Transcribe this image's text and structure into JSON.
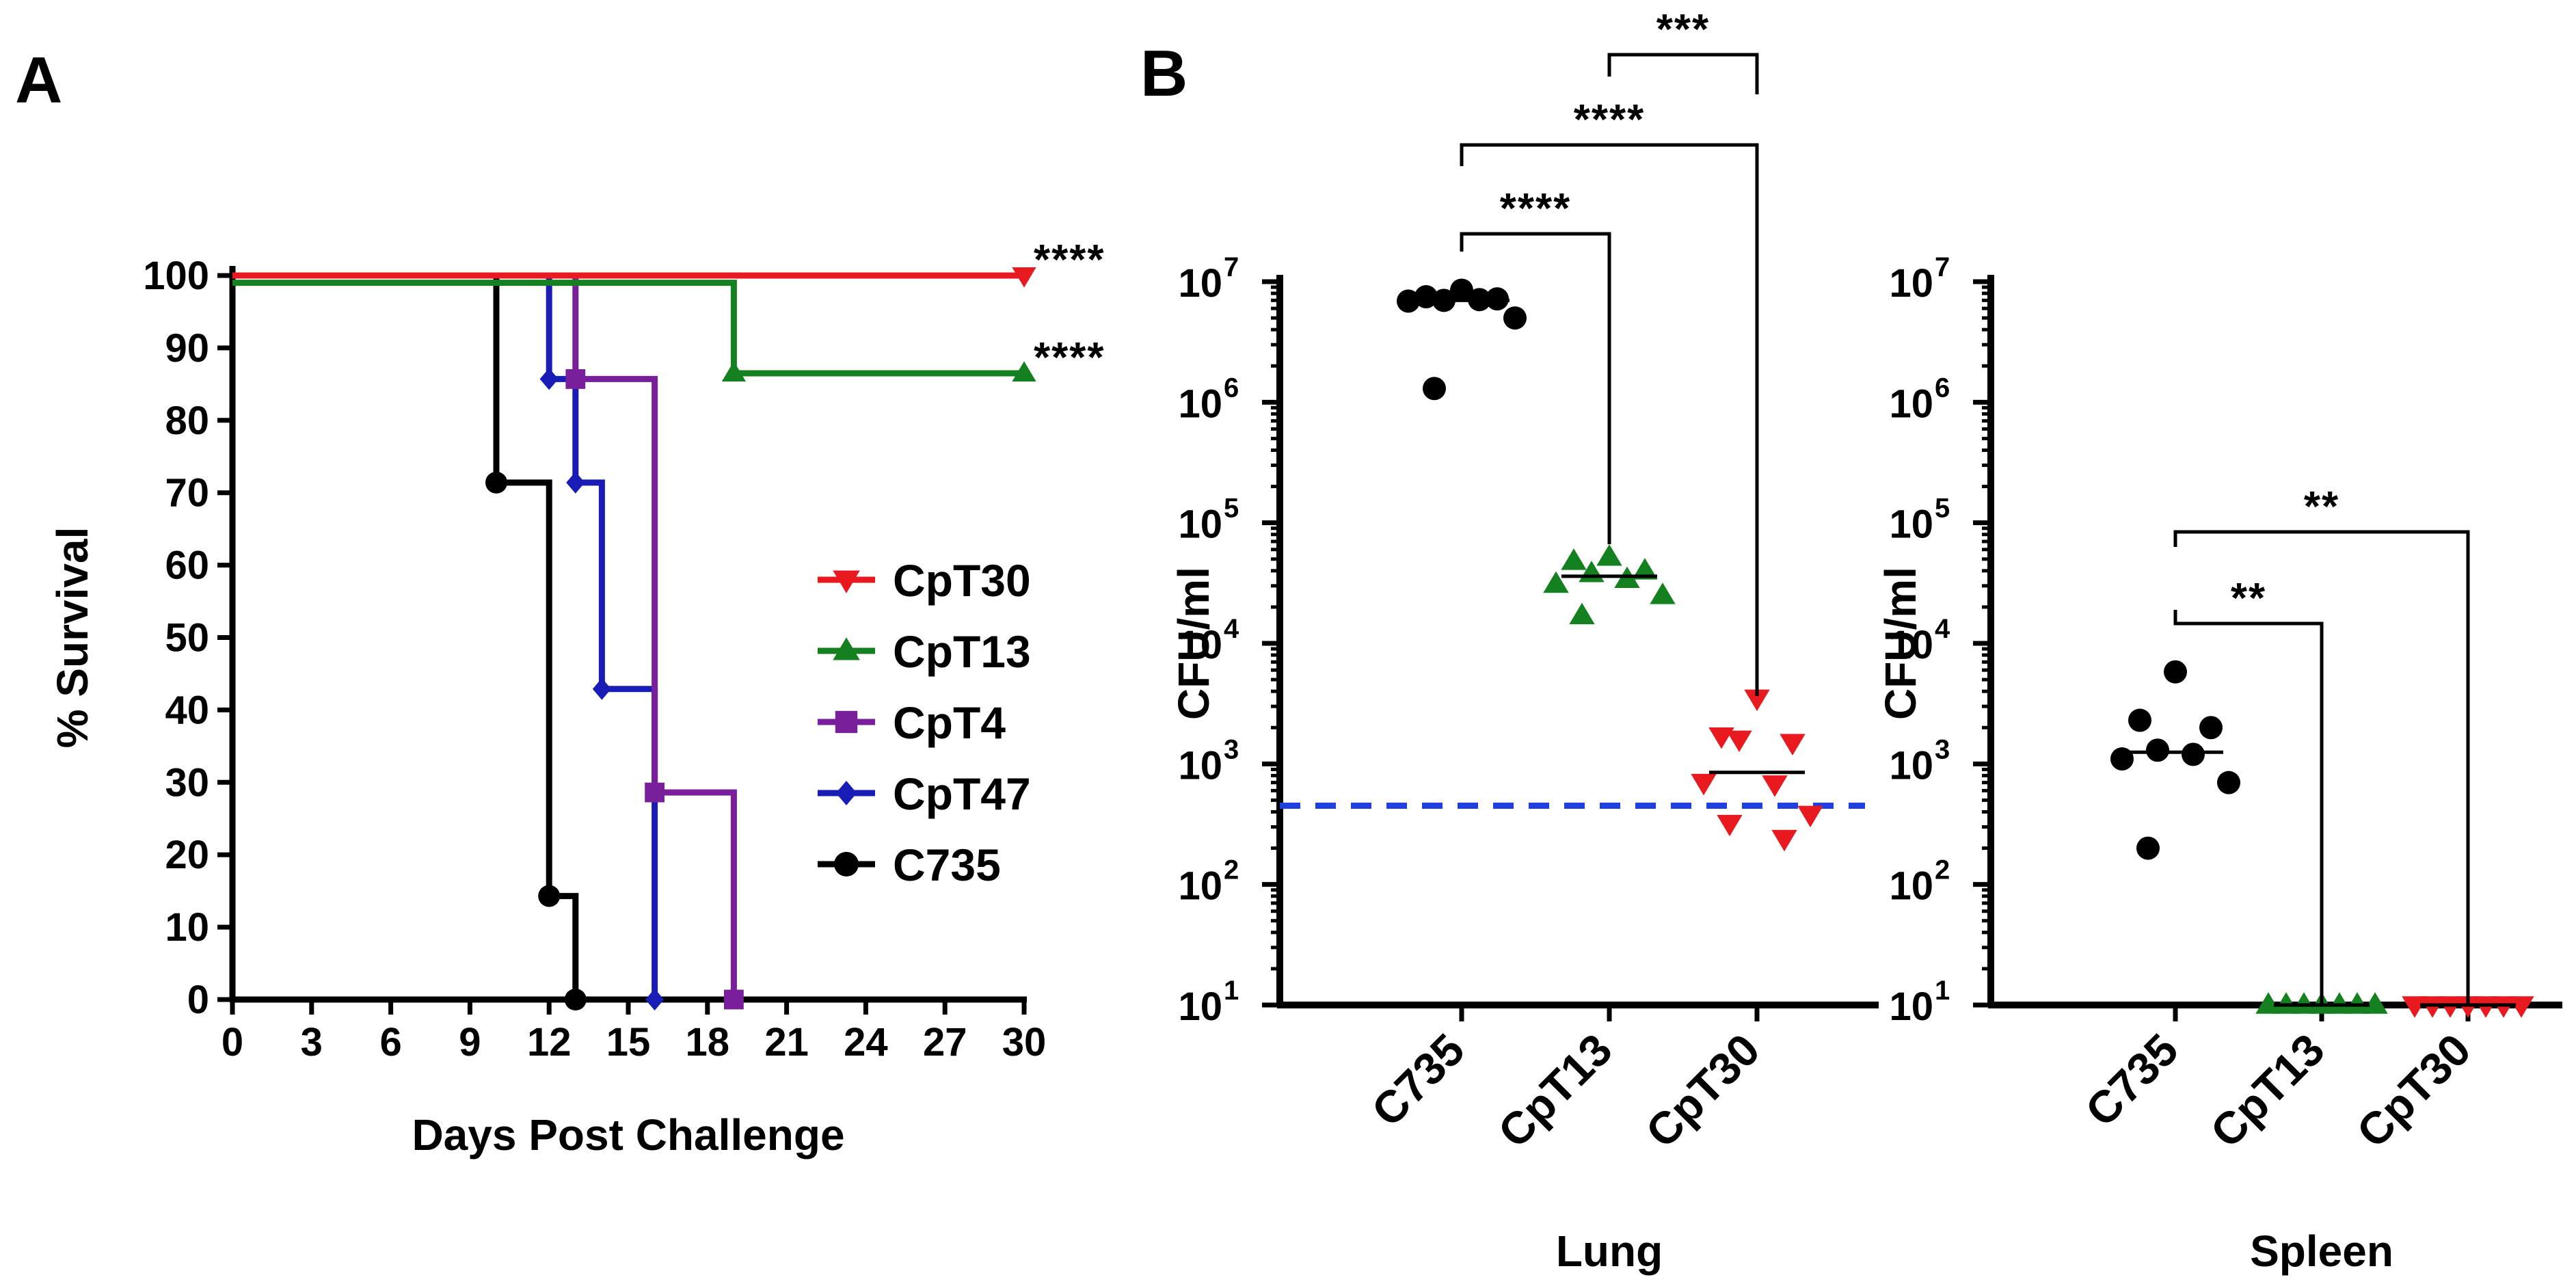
{
  "panel_a_label": "A",
  "panel_b_label": "B",
  "chart_data": [
    {
      "type": "line",
      "subtype": "kaplan-meier",
      "panel": "A",
      "xlabel": "Days Post Challenge",
      "ylabel": "% Survival",
      "xlim": [
        0,
        30
      ],
      "ylim": [
        0,
        100
      ],
      "xticks": [
        0,
        3,
        6,
        9,
        12,
        15,
        18,
        21,
        24,
        27,
        30
      ],
      "yticks": [
        0,
        10,
        20,
        30,
        40,
        50,
        60,
        70,
        80,
        90,
        100
      ],
      "legend_position": "center-right",
      "series": [
        {
          "name": "CpT30",
          "color": "#e8191f",
          "marker": "triangle-down",
          "steps": [
            [
              0,
              100
            ],
            [
              30,
              100
            ]
          ],
          "markers": [
            [
              30,
              100
            ]
          ],
          "significance": "****"
        },
        {
          "name": "CpT13",
          "color": "#14801f",
          "marker": "triangle-up",
          "steps": [
            [
              0,
              99
            ],
            [
              19,
              99
            ],
            [
              19,
              86.5
            ],
            [
              30,
              86.5
            ]
          ],
          "markers": [
            [
              19,
              86.5
            ],
            [
              30,
              86.5
            ]
          ],
          "significance": "****"
        },
        {
          "name": "CpT4",
          "color": "#7a1f9c",
          "marker": "square",
          "steps": [
            [
              0,
              100
            ],
            [
              13,
              100
            ],
            [
              13,
              85.7
            ],
            [
              16,
              85.7
            ],
            [
              16,
              28.6
            ],
            [
              19,
              28.6
            ],
            [
              19,
              0
            ]
          ],
          "markers": [
            [
              13,
              85.7
            ],
            [
              16,
              28.6
            ],
            [
              19,
              0
            ]
          ],
          "significance": ""
        },
        {
          "name": "CpT47",
          "color": "#1a1db5",
          "marker": "diamond",
          "steps": [
            [
              0,
              100
            ],
            [
              12,
              100
            ],
            [
              12,
              85.7
            ],
            [
              13,
              85.7
            ],
            [
              13,
              71.4
            ],
            [
              14,
              71.4
            ],
            [
              14,
              42.9
            ],
            [
              16,
              42.9
            ],
            [
              16,
              0
            ]
          ],
          "markers": [
            [
              12,
              85.7
            ],
            [
              13,
              71.4
            ],
            [
              14,
              42.9
            ],
            [
              16,
              0
            ]
          ],
          "significance": ""
        },
        {
          "name": "C735",
          "color": "#000000",
          "marker": "circle",
          "steps": [
            [
              0,
              100
            ],
            [
              10,
              100
            ],
            [
              10,
              71.4
            ],
            [
              12,
              71.4
            ],
            [
              12,
              14.3
            ],
            [
              13,
              14.3
            ],
            [
              13,
              0
            ]
          ],
          "markers": [
            [
              10,
              71.4
            ],
            [
              12,
              14.3
            ],
            [
              13,
              0
            ]
          ],
          "significance": ""
        }
      ]
    },
    {
      "type": "scatter",
      "subtype": "dot-plot-log",
      "panel": "B",
      "xlabel": "Lung",
      "ylabel": "CFU/ml",
      "ylim_log10": [
        1,
        7
      ],
      "ytick_base": "10",
      "ytick_exponents": [
        "1",
        "2",
        "3",
        "4",
        "5",
        "6",
        "7"
      ],
      "categories": [
        "C735",
        "CpT13",
        "CpT30"
      ],
      "detection_limit": 450,
      "series": [
        {
          "name": "C735",
          "color": "#000000",
          "marker": "circle",
          "median": 7000000,
          "values": [
            8500000,
            7500000,
            7200000,
            7000000,
            7100000,
            6900000,
            5000000,
            1300000
          ]
        },
        {
          "name": "CpT13",
          "color": "#14801f",
          "marker": "triangle-up",
          "median": 36000,
          "values": [
            52000,
            48000,
            40000,
            38000,
            34000,
            31000,
            25000,
            17000
          ]
        },
        {
          "name": "CpT30",
          "color": "#e8191f",
          "marker": "triangle-down",
          "median": 850,
          "values": [
            3500,
            1700,
            1500,
            1600,
            680,
            700,
            380,
            320,
            240
          ]
        }
      ],
      "comparisons": [
        {
          "from": "C735",
          "to": "CpT13",
          "label": "****"
        },
        {
          "from": "C735",
          "to": "CpT30",
          "label": "****"
        },
        {
          "from": "CpT13",
          "to": "CpT30",
          "label": "***"
        }
      ]
    },
    {
      "type": "scatter",
      "subtype": "dot-plot-log",
      "panel": "B",
      "xlabel": "Spleen",
      "ylabel": "CFU/ml",
      "ylim_log10": [
        1,
        7
      ],
      "ytick_base": "10",
      "ytick_exponents": [
        "1",
        "2",
        "3",
        "4",
        "5",
        "6",
        "7"
      ],
      "categories": [
        "C735",
        "CpT13",
        "CpT30"
      ],
      "series": [
        {
          "name": "C735",
          "color": "#000000",
          "marker": "circle",
          "median": 1250,
          "values": [
            5800,
            2300,
            2000,
            1300,
            1200,
            1100,
            700,
            200
          ]
        },
        {
          "name": "CpT13",
          "color": "#14801f",
          "marker": "triangle-up",
          "median": 10,
          "values": [
            10,
            10,
            10,
            10,
            10,
            10,
            10
          ]
        },
        {
          "name": "CpT30",
          "color": "#e8191f",
          "marker": "triangle-down",
          "median": 10,
          "values": [
            10,
            10,
            10,
            10,
            10,
            10,
            10
          ]
        }
      ],
      "comparisons": [
        {
          "from": "C735",
          "to": "CpT13",
          "label": "**"
        },
        {
          "from": "C735",
          "to": "CpT30",
          "label": "**"
        }
      ]
    }
  ]
}
